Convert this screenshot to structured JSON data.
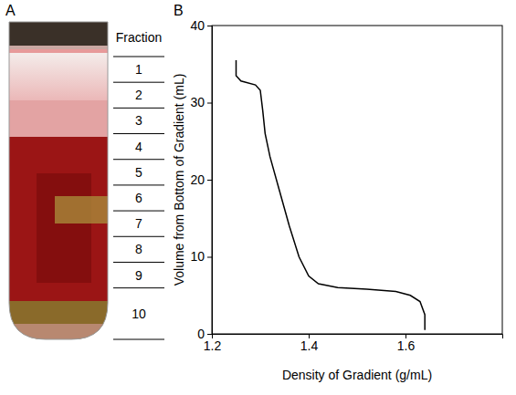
{
  "panel_a": {
    "letter": "A",
    "heading": "Fraction",
    "fractions": [
      1,
      2,
      3,
      4,
      5,
      6,
      7,
      8,
      9,
      10
    ]
  },
  "chart_data": {
    "letter": "B",
    "type": "line",
    "x_label": "Density of Gradient (g/mL)",
    "y_label": "Volume from Bottom of Gradient (mL)",
    "x": [
      1.25,
      1.25,
      1.26,
      1.29,
      1.3,
      1.305,
      1.31,
      1.32,
      1.34,
      1.36,
      1.38,
      1.4,
      1.42,
      1.46,
      1.52,
      1.58,
      1.61,
      1.63,
      1.64,
      1.64
    ],
    "values": [
      35.5,
      33.5,
      32.8,
      32.3,
      31.6,
      29,
      26,
      23,
      18.5,
      14,
      10,
      7.5,
      6.5,
      6.0,
      5.8,
      5.5,
      5.0,
      4.2,
      2.5,
      0.5
    ],
    "color": "#000000",
    "xlim": [
      1.2,
      1.8
    ],
    "xticks": [
      1.2,
      1.4,
      1.6
    ],
    "ylim": [
      0,
      40
    ],
    "yticks": [
      0,
      10,
      20,
      30,
      40
    ],
    "grid": false
  }
}
